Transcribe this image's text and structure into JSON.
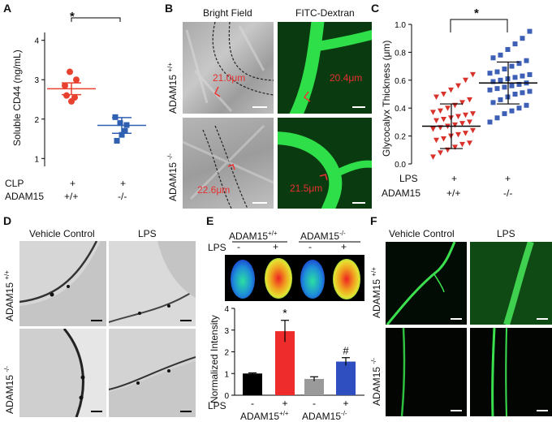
{
  "panels": {
    "A": {
      "label": "A",
      "ylabel": "Soluble CD44  (ng/mL)",
      "yticks": [
        "1",
        "2",
        "3",
        "4"
      ],
      "sig": "*",
      "row1_label": "CLP",
      "row1_values": [
        "+",
        "+"
      ],
      "row2_label": "ADAM15",
      "row2_values": [
        "+/+",
        "-/-"
      ]
    },
    "B": {
      "label": "B",
      "col1": "Bright Field",
      "col2": "FITC-Dextran",
      "row1": "ADAM15 +/+",
      "row2": "ADAM15 -/-",
      "m1": "21.0μm",
      "m2": "20.4μm",
      "m3": "22.6μm",
      "m4": "21.5μm"
    },
    "C": {
      "label": "C",
      "ylabel": "Glycocalyx Thickness (μm)",
      "yticks": [
        "0.0",
        "0.2",
        "0.4",
        "0.6",
        "0.8",
        "1.0"
      ],
      "sig": "*",
      "row1_label": "LPS",
      "row1_values": [
        "+",
        "+"
      ],
      "row2_label": "ADAM15",
      "row2_values": [
        "+/+",
        "-/-"
      ]
    },
    "D": {
      "label": "D",
      "col1": "Vehicle Control",
      "col2": "LPS",
      "row1": "ADAM15 +/+",
      "row2": "ADAM15 -/-"
    },
    "E": {
      "label": "E",
      "header1": "ADAM15+/+",
      "header2": "ADAM15-/-",
      "lps_label": "LPS",
      "lps_values": [
        "-",
        "+",
        "-",
        "+"
      ],
      "ylabel": "Normalized Intensity",
      "yticks": [
        "0",
        "1",
        "2",
        "3",
        "4"
      ],
      "star": "*",
      "hash": "#",
      "bottom_group1": "ADAM15+/+",
      "bottom_group2": "ADAM15-/-"
    },
    "F": {
      "label": "F",
      "col1": "Vehicle Control",
      "col2": "LPS",
      "row1": "ADAM15 +/+",
      "row2": "ADAM15 -/-"
    }
  },
  "chart_data": [
    {
      "panel": "A",
      "type": "scatter",
      "categories": [
        "+/+",
        "-/-"
      ],
      "series": [
        {
          "values": [
            2.85,
            3.2,
            2.55,
            2.6,
            3.0,
            2.45
          ],
          "mean": 2.77,
          "sem": 0.15
        },
        {
          "values": [
            2.05,
            1.9,
            1.7,
            1.45,
            1.85,
            1.6
          ],
          "mean": 1.84,
          "sem": 0.2
        }
      ],
      "ylim": [
        0.8,
        4.2
      ],
      "colors": [
        "#e8412f",
        "#2f5fb0"
      ]
    },
    {
      "panel": "C",
      "type": "scatter",
      "categories": [
        "+/+",
        "-/-"
      ],
      "series": [
        {
          "mean": 0.27,
          "sd": 0.16,
          "values": [
            0.05,
            0.08,
            0.1,
            0.12,
            0.14,
            0.15,
            0.17,
            0.18,
            0.2,
            0.21,
            0.22,
            0.24,
            0.25,
            0.26,
            0.27,
            0.28,
            0.29,
            0.3,
            0.31,
            0.32,
            0.33,
            0.34,
            0.35,
            0.36,
            0.37,
            0.38,
            0.4,
            0.42,
            0.44,
            0.46,
            0.48,
            0.5,
            0.53,
            0.56,
            0.6,
            0.64
          ]
        },
        {
          "mean": 0.58,
          "sd": 0.15,
          "values": [
            0.3,
            0.33,
            0.36,
            0.38,
            0.4,
            0.42,
            0.44,
            0.46,
            0.48,
            0.5,
            0.51,
            0.52,
            0.53,
            0.54,
            0.55,
            0.56,
            0.57,
            0.58,
            0.59,
            0.6,
            0.61,
            0.62,
            0.63,
            0.64,
            0.65,
            0.66,
            0.68,
            0.7,
            0.72,
            0.74,
            0.76,
            0.78,
            0.82,
            0.86,
            0.9,
            0.95
          ]
        }
      ],
      "ylim": [
        0,
        1.0
      ],
      "colors": [
        "#d9322b",
        "#3d5fb5"
      ]
    },
    {
      "panel": "E",
      "type": "bar",
      "categories": [
        "-",
        "+",
        "-",
        "+"
      ],
      "values": [
        1.0,
        2.95,
        0.75,
        1.55
      ],
      "errors": [
        0.03,
        0.5,
        0.1,
        0.18
      ],
      "ylim": [
        0,
        4
      ],
      "colors": [
        "#000000",
        "#ee2c2c",
        "#9a9a9a",
        "#2f4fc0"
      ]
    }
  ]
}
